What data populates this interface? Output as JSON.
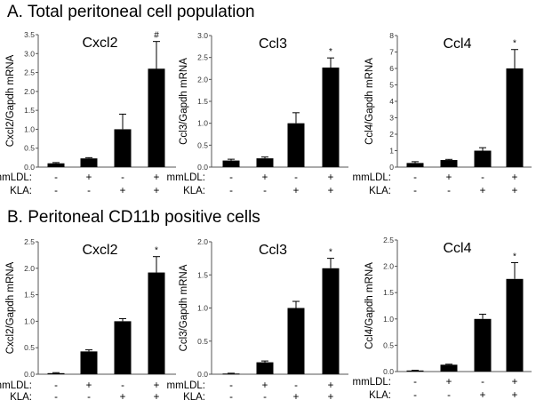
{
  "sections": [
    "A. Total peritoneal cell population",
    "B. Peritoneal CD11b positive cells"
  ],
  "condition_labels": {
    "mmLDL": "mmLDL:",
    "KLA": "KLA:"
  },
  "conditions": {
    "mmLDL": [
      "-",
      "+",
      "-",
      "+"
    ],
    "KLA": [
      "-",
      "-",
      "+",
      "+"
    ]
  },
  "chart_data": [
    {
      "type": "bar",
      "section": 0,
      "title": "Cxcl2",
      "ylabel": "Cxcl2/Gapdh mRNA",
      "ylim": [
        0,
        3.5
      ],
      "yticks": [
        "0.0",
        "0.5",
        "1.0",
        "1.5",
        "2.0",
        "2.5",
        "3.0",
        "3.5"
      ],
      "categories": [
        "-/-",
        "+/-",
        "-/+",
        "+/+"
      ],
      "values": [
        0.1,
        0.23,
        1.0,
        2.6
      ],
      "errors": [
        0.02,
        0.02,
        0.4,
        0.72
      ],
      "annotations": [
        "",
        "",
        "",
        "#"
      ]
    },
    {
      "type": "bar",
      "section": 0,
      "title": "Ccl3",
      "ylabel": "Ccl3/Gapdh mRNA",
      "ylim": [
        0,
        3.0
      ],
      "yticks": [
        "0.0",
        "0.5",
        "1.0",
        "1.5",
        "2.0",
        "2.5",
        "3.0"
      ],
      "categories": [
        "-/-",
        "+/-",
        "-/+",
        "+/+"
      ],
      "values": [
        0.15,
        0.2,
        1.0,
        2.27
      ],
      "errors": [
        0.03,
        0.03,
        0.24,
        0.22
      ],
      "annotations": [
        "",
        "",
        "",
        "*"
      ]
    },
    {
      "type": "bar",
      "section": 0,
      "title": "Ccl4",
      "ylabel": "Ccl4/Gapdh mRNA",
      "ylim": [
        0,
        8
      ],
      "yticks": [
        "0",
        "1",
        "2",
        "3",
        "4",
        "5",
        "6",
        "7",
        "8"
      ],
      "categories": [
        "-/-",
        "+/-",
        "-/+",
        "+/+"
      ],
      "values": [
        0.25,
        0.43,
        1.0,
        6.0
      ],
      "errors": [
        0.08,
        0.04,
        0.18,
        1.15
      ],
      "annotations": [
        "",
        "",
        "",
        "*"
      ]
    },
    {
      "type": "bar",
      "section": 1,
      "title": "Cxcl2",
      "ylabel": "Cxcl2/Gapdh mRNA",
      "ylim": [
        0,
        2.5
      ],
      "yticks": [
        "0.0",
        "0.5",
        "1.0",
        "1.5",
        "2.0",
        "2.5"
      ],
      "categories": [
        "-/-",
        "+/-",
        "-/+",
        "+/+"
      ],
      "values": [
        0.02,
        0.43,
        1.0,
        1.92
      ],
      "errors": [
        0.01,
        0.03,
        0.05,
        0.3
      ],
      "annotations": [
        "",
        "",
        "",
        "*"
      ]
    },
    {
      "type": "bar",
      "section": 1,
      "title": "Ccl3",
      "ylabel": "Ccl3/Gapdh mRNA",
      "ylim": [
        0,
        2.0
      ],
      "yticks": [
        "0.0",
        "0.5",
        "1.0",
        "1.5",
        "2.0"
      ],
      "categories": [
        "-/-",
        "+/-",
        "-/+",
        "+/+"
      ],
      "values": [
        0.01,
        0.18,
        1.0,
        1.6
      ],
      "errors": [
        0.005,
        0.02,
        0.1,
        0.15
      ],
      "annotations": [
        "",
        "",
        "",
        "*"
      ]
    },
    {
      "type": "bar",
      "section": 1,
      "title": "Ccl4",
      "ylabel": "Ccl4/Gapdh mRNA",
      "ylim": [
        0,
        2.5
      ],
      "yticks": [
        "0.0",
        "0.5",
        "1.0",
        "1.5",
        "2.0",
        "2.5"
      ],
      "categories": [
        "-/-",
        "+/-",
        "-/+",
        "+/+"
      ],
      "values": [
        0.02,
        0.13,
        1.0,
        1.76
      ],
      "errors": [
        0.005,
        0.01,
        0.09,
        0.31
      ],
      "annotations": [
        "",
        "",
        "",
        "*"
      ]
    }
  ]
}
